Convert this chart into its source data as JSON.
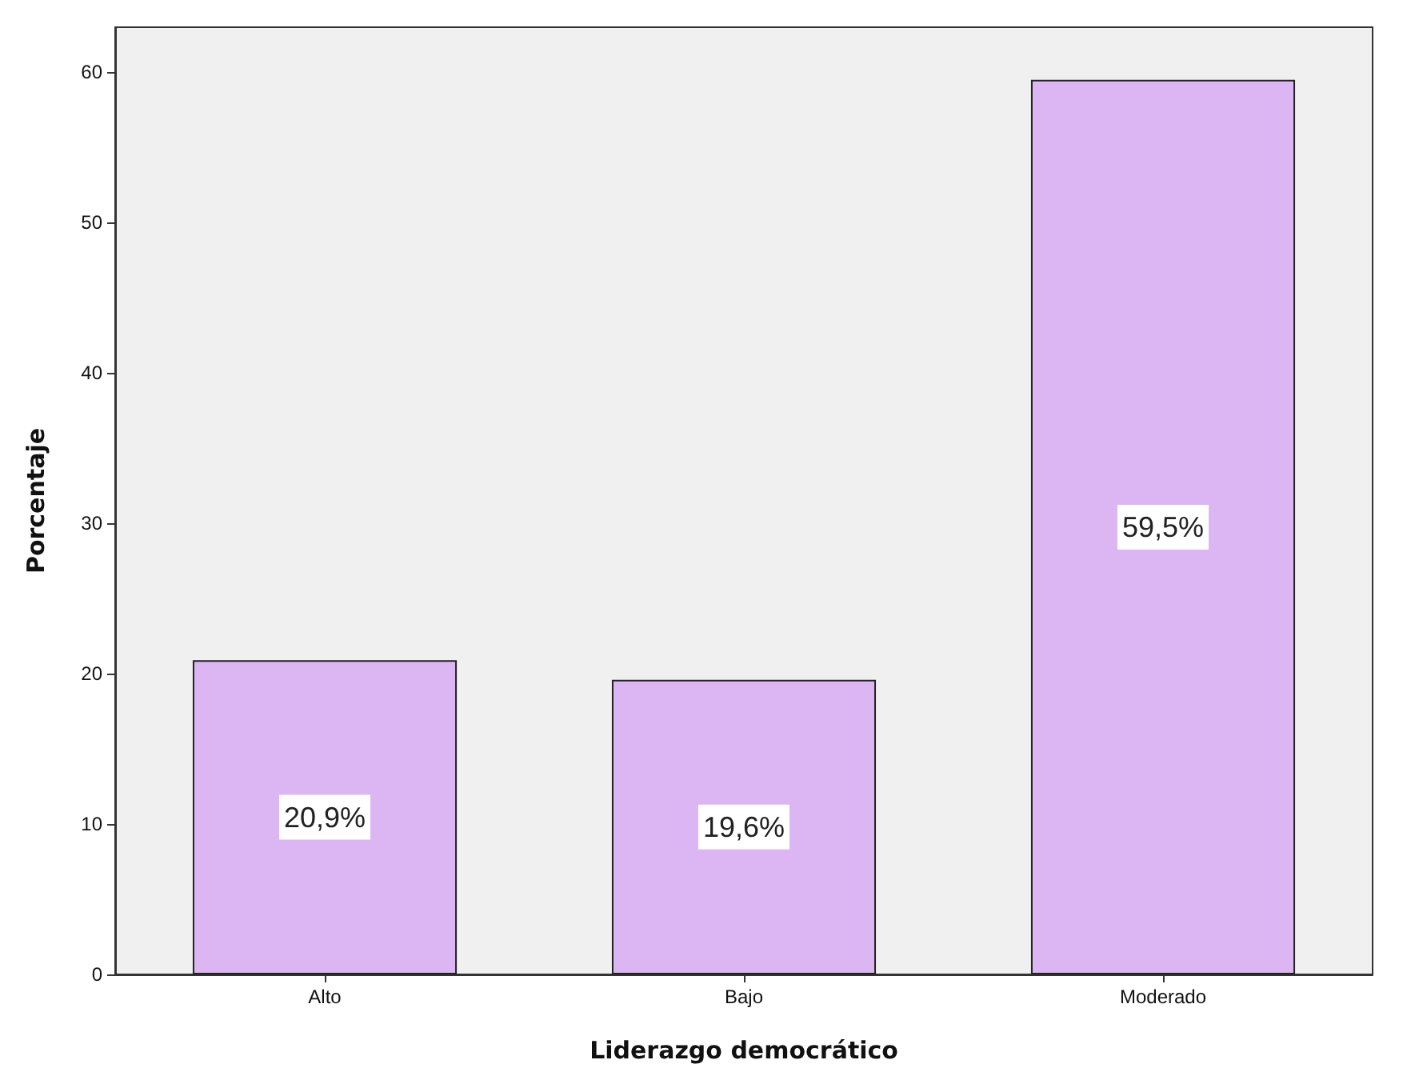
{
  "chart_data": {
    "type": "bar",
    "xlabel": "Liderazgo democrático",
    "ylabel": "Porcentaje",
    "categories": [
      "Alto",
      "Bajo",
      "Moderado"
    ],
    "values": [
      20.9,
      19.6,
      59.5
    ],
    "value_labels": [
      "20,9%",
      "19,6%",
      "59,5%"
    ],
    "color": "#dcb6f2",
    "ylim": [
      0,
      63
    ],
    "yticks": [
      0,
      10,
      20,
      30,
      40,
      50,
      60
    ],
    "grid": false
  }
}
